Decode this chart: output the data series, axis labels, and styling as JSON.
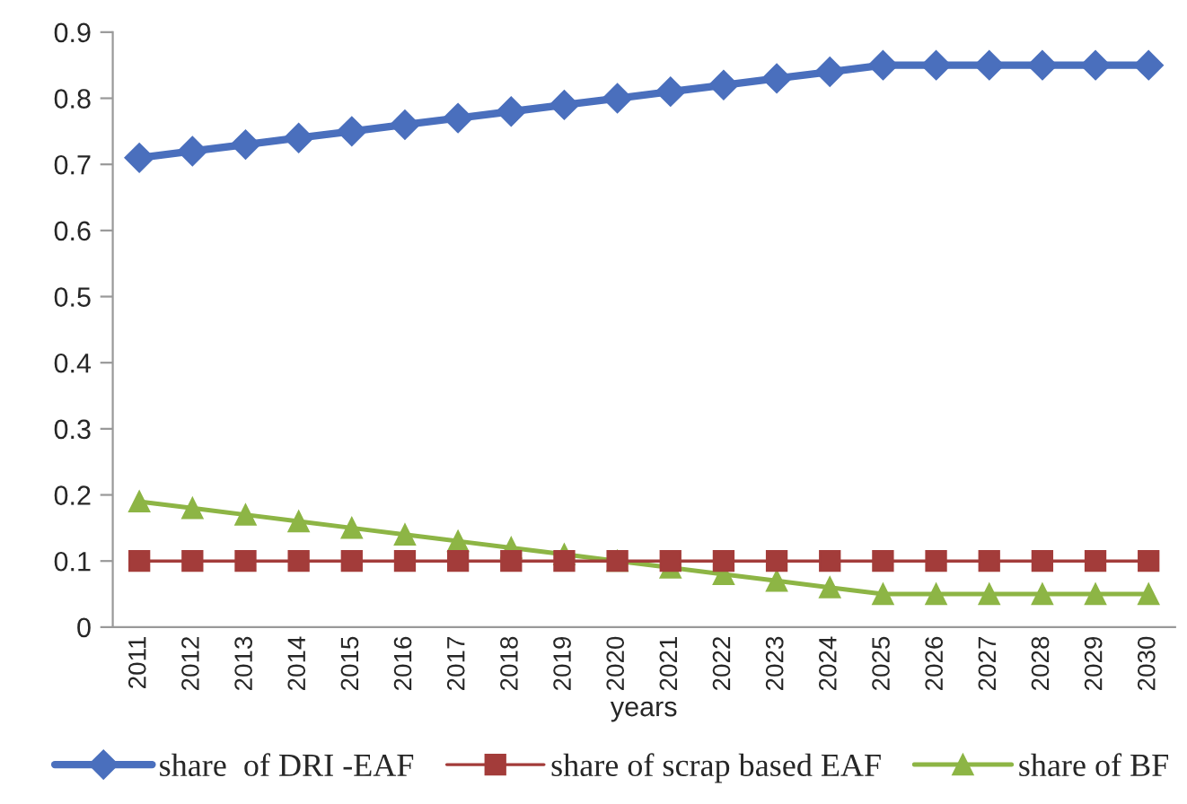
{
  "chart_data": {
    "type": "line",
    "xlabel": "years",
    "categories": [
      "2011",
      "2012",
      "2013",
      "2014",
      "2015",
      "2016",
      "2017",
      "2018",
      "2019",
      "2020",
      "2021",
      "2022",
      "2023",
      "2024",
      "2025",
      "2026",
      "2027",
      "2028",
      "2029",
      "2030"
    ],
    "series": [
      {
        "name": "share  of DRI -EAF",
        "color": "#4a6fbd",
        "marker": "diamond",
        "values": [
          0.71,
          0.72,
          0.73,
          0.74,
          0.75,
          0.76,
          0.77,
          0.78,
          0.79,
          0.8,
          0.81,
          0.82,
          0.83,
          0.84,
          0.85,
          0.85,
          0.85,
          0.85,
          0.85,
          0.85
        ]
      },
      {
        "name": "share of scrap based EAF",
        "color": "#a33c3a",
        "marker": "square",
        "values": [
          0.1,
          0.1,
          0.1,
          0.1,
          0.1,
          0.1,
          0.1,
          0.1,
          0.1,
          0.1,
          0.1,
          0.1,
          0.1,
          0.1,
          0.1,
          0.1,
          0.1,
          0.1,
          0.1,
          0.1
        ]
      },
      {
        "name": "share of BF",
        "color": "#8db545",
        "marker": "triangle",
        "values": [
          0.19,
          0.18,
          0.17,
          0.16,
          0.15,
          0.14,
          0.13,
          0.12,
          0.11,
          0.1,
          0.09,
          0.08,
          0.07,
          0.06,
          0.05,
          0.05,
          0.05,
          0.05,
          0.05,
          0.05
        ]
      }
    ],
    "ylim": [
      0,
      0.9
    ],
    "yticks": [
      0,
      0.1,
      0.2,
      0.3,
      0.4,
      0.5,
      0.6,
      0.7,
      0.8,
      0.9
    ],
    "grid": false,
    "legend": "bottom"
  }
}
